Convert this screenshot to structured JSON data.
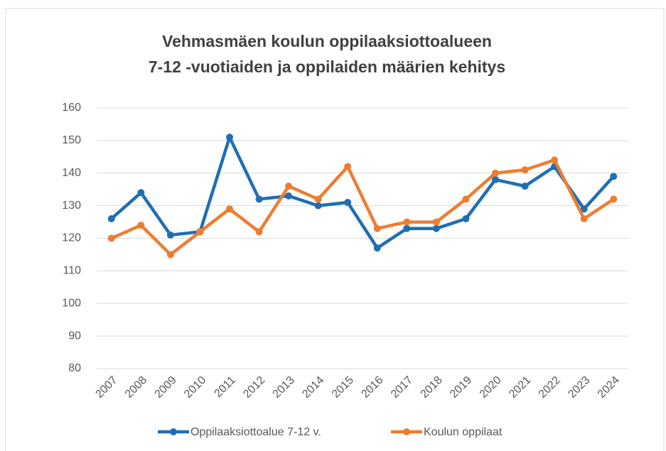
{
  "chart_data": {
    "type": "line",
    "title": [
      "Vehmasmäen koulun oppilaaksiottoalueen",
      "7-12 -vuotiaiden ja oppilaiden määrien kehitys"
    ],
    "categories": [
      "2007",
      "2008",
      "2009",
      "2010",
      "2011",
      "2012",
      "2013",
      "2014",
      "2015",
      "2016",
      "2017",
      "2018",
      "2019",
      "2020",
      "2021",
      "2022",
      "2023",
      "2024"
    ],
    "series": [
      {
        "name": "Oppilaaksiottoalue 7-12 v.",
        "color": "#1f6eb3",
        "values": [
          126,
          134,
          121,
          122,
          151,
          132,
          133,
          130,
          131,
          117,
          123,
          123,
          126,
          138,
          136,
          142,
          129,
          139
        ]
      },
      {
        "name": "Koulun oppilaat",
        "color": "#ed7d31",
        "values": [
          120,
          124,
          115,
          122,
          129,
          122,
          136,
          132,
          142,
          123,
          125,
          125,
          132,
          140,
          141,
          144,
          126,
          132
        ]
      }
    ],
    "ylim": [
      80,
      160
    ],
    "yticks": [
      80,
      90,
      100,
      110,
      120,
      130,
      140,
      150,
      160
    ],
    "grid": true,
    "legend": "bottom"
  }
}
